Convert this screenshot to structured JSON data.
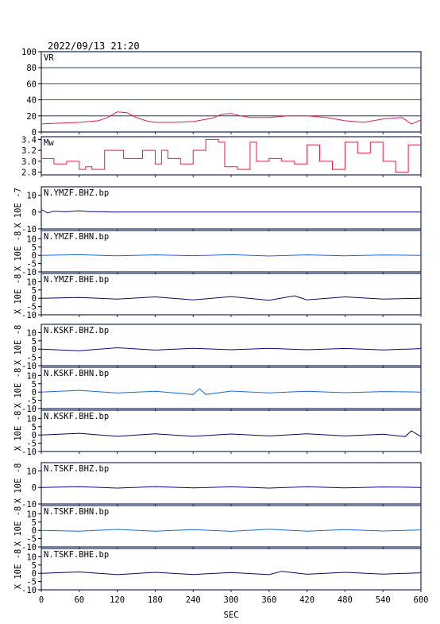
{
  "chart_data": {
    "type": "line",
    "title": "2022/09/13 21:20",
    "xlabel": "SEC",
    "xlim": [
      0,
      600
    ],
    "x_ticks": [
      "0",
      "60",
      "120",
      "180",
      "240",
      "300",
      "360",
      "420",
      "480",
      "540",
      "600"
    ],
    "colors": {
      "vr": "#e0204a",
      "mw": "#e0204a",
      "bhz": "#0a0a8a",
      "bhn": "#1a6ad8",
      "bhe": "#0a0a5a",
      "frame": "#1a2a55"
    },
    "panels": [
      {
        "id": "vr",
        "label": "VR",
        "ylim": [
          0,
          100
        ],
        "y_ticks": [
          "0",
          "20",
          "40",
          "60",
          "80",
          "100"
        ],
        "grid": true,
        "series": {
          "x": [
            0,
            30,
            60,
            90,
            105,
            120,
            135,
            150,
            165,
            180,
            210,
            240,
            270,
            285,
            300,
            315,
            330,
            360,
            390,
            420,
            450,
            480,
            510,
            540,
            570,
            585,
            600
          ],
          "y": [
            10,
            11,
            12,
            14,
            18,
            25,
            24,
            18,
            14,
            12,
            12,
            13,
            17,
            22,
            23,
            20,
            18,
            18,
            20,
            20,
            18,
            14,
            12,
            16,
            18,
            10,
            15
          ]
        }
      },
      {
        "id": "mw",
        "label": "Mw",
        "ylim": [
          2.75,
          3.45
        ],
        "y_ticks": [
          "2.8",
          "3.0",
          "3.2",
          "3.4"
        ],
        "grid": false,
        "series": {
          "x": [
            0,
            20,
            40,
            60,
            70,
            80,
            100,
            130,
            160,
            180,
            190,
            200,
            220,
            240,
            260,
            280,
            290,
            310,
            330,
            340,
            360,
            380,
            400,
            420,
            440,
            460,
            480,
            500,
            520,
            540,
            560,
            580,
            600
          ],
          "y": [
            3.0,
            3.05,
            2.95,
            3.0,
            2.85,
            2.9,
            2.85,
            3.2,
            3.05,
            3.2,
            2.95,
            3.2,
            3.05,
            2.95,
            3.2,
            3.4,
            3.35,
            2.9,
            2.85,
            3.35,
            3.0,
            3.05,
            3.0,
            2.95,
            3.3,
            3.0,
            2.85,
            3.35,
            3.15,
            3.35,
            3.0,
            2.8,
            3.3
          ]
        }
      },
      {
        "id": "ymzf-bhz",
        "label": "N.YMZF.BHZ.bp",
        "unit": "X 10E -7",
        "ylim": [
          -10,
          15
        ],
        "y_ticks": [
          "-10",
          "0",
          "10"
        ],
        "color_key": "bhz",
        "series": {
          "x": [
            0,
            10,
            20,
            40,
            60,
            75,
            90,
            110,
            140,
            600
          ],
          "y": [
            1.5,
            -0.5,
            0.5,
            0.2,
            0.8,
            0.3,
            0.3,
            0,
            0,
            0
          ]
        }
      },
      {
        "id": "ymzf-bhn",
        "label": "N.YMZF.BHN.bp",
        "unit": "X 10E -8",
        "ylim": [
          -10,
          15
        ],
        "y_ticks": [
          "-10",
          "-5",
          "0",
          "5",
          "10"
        ],
        "color_key": "bhn",
        "series": {
          "x": [
            0,
            60,
            120,
            180,
            240,
            300,
            360,
            420,
            480,
            540,
            600
          ],
          "y": [
            0,
            0.4,
            -0.3,
            0.3,
            -0.2,
            0.4,
            -0.4,
            0.3,
            -0.3,
            0.2,
            0
          ]
        }
      },
      {
        "id": "ymzf-bhe",
        "label": "N.YMZF.BHE.bp",
        "unit": "X 10E -8",
        "ylim": [
          -10,
          15
        ],
        "y_ticks": [
          "-10",
          "-5",
          "0",
          "5",
          "10"
        ],
        "color_key": "bhe",
        "series": {
          "x": [
            0,
            60,
            120,
            180,
            240,
            300,
            360,
            400,
            420,
            480,
            540,
            600
          ],
          "y": [
            0,
            0.5,
            -0.5,
            0.8,
            -1.0,
            1.0,
            -1.2,
            1.5,
            -1.0,
            0.8,
            -0.5,
            0
          ]
        }
      },
      {
        "id": "kskf-bhz",
        "label": "N.KSKF.BHZ.bp",
        "unit": "X 10E -8",
        "ylim": [
          -10,
          15
        ],
        "y_ticks": [
          "-10",
          "-5",
          "0",
          "5",
          "10"
        ],
        "color_key": "bhz",
        "series": {
          "x": [
            0,
            60,
            120,
            180,
            240,
            300,
            360,
            420,
            480,
            540,
            600
          ],
          "y": [
            0,
            -1.0,
            0.8,
            -0.6,
            0.5,
            -0.4,
            0.5,
            -0.4,
            0.4,
            -0.5,
            0.3
          ]
        }
      },
      {
        "id": "kskf-bhn",
        "label": "N.KSKF.BHN.bp",
        "unit": "X 10E -8",
        "ylim": [
          -10,
          15
        ],
        "y_ticks": [
          "-10",
          "-5",
          "0",
          "5",
          "10"
        ],
        "color_key": "bhn",
        "series": {
          "x": [
            0,
            60,
            120,
            180,
            240,
            250,
            260,
            300,
            360,
            420,
            480,
            540,
            600
          ],
          "y": [
            0,
            1.0,
            -0.6,
            0.5,
            -1.5,
            2.0,
            -1.5,
            0.6,
            -0.5,
            0.5,
            -0.4,
            0.3,
            0
          ]
        }
      },
      {
        "id": "kskf-bhe",
        "label": "N.KSKF.BHE.bp",
        "unit": "X 10E -8",
        "ylim": [
          -10,
          15
        ],
        "y_ticks": [
          "-10",
          "-5",
          "0",
          "5",
          "10"
        ],
        "color_key": "bhe",
        "series": {
          "x": [
            0,
            60,
            120,
            180,
            240,
            300,
            360,
            420,
            480,
            540,
            575,
            585,
            600
          ],
          "y": [
            0,
            1.0,
            -0.8,
            0.7,
            -0.8,
            0.6,
            -0.6,
            0.7,
            -0.6,
            0.5,
            -1.0,
            2.5,
            -1.0
          ]
        }
      },
      {
        "id": "tskf-bhz",
        "label": "N.TSKF.BHZ.bp",
        "unit": "X 10E -8",
        "ylim": [
          -10,
          15
        ],
        "y_ticks": [
          "-10",
          "0",
          "10"
        ],
        "color_key": "bhz",
        "series": {
          "x": [
            0,
            60,
            120,
            180,
            240,
            300,
            360,
            420,
            480,
            540,
            600
          ],
          "y": [
            0,
            0.5,
            -0.4,
            0.5,
            -0.3,
            0.4,
            -0.4,
            0.4,
            -0.3,
            0.3,
            0
          ]
        }
      },
      {
        "id": "tskf-bhn",
        "label": "N.TSKF.BHN.bp",
        "unit": "X 10E -8",
        "ylim": [
          -10,
          15
        ],
        "y_ticks": [
          "-10",
          "-5",
          "0",
          "5",
          "10"
        ],
        "color_key": "bhn",
        "series": {
          "x": [
            0,
            60,
            120,
            180,
            240,
            300,
            360,
            420,
            480,
            540,
            600
          ],
          "y": [
            0,
            -0.5,
            0.6,
            -0.5,
            0.5,
            -0.6,
            0.7,
            -0.5,
            0.5,
            -0.4,
            0.3
          ]
        }
      },
      {
        "id": "tskf-bhe",
        "label": "N.TSKF.BHE.bp",
        "unit": "X 10E -8",
        "ylim": [
          -10,
          15
        ],
        "y_ticks": [
          "-10",
          "-5",
          "0",
          "5",
          "10"
        ],
        "color_key": "bhe",
        "series": {
          "x": [
            0,
            60,
            120,
            180,
            240,
            300,
            360,
            380,
            420,
            480,
            540,
            600
          ],
          "y": [
            0,
            0.8,
            -0.8,
            0.6,
            -0.7,
            0.5,
            -0.8,
            1.2,
            -0.6,
            0.6,
            -0.5,
            0.3
          ]
        }
      }
    ]
  }
}
